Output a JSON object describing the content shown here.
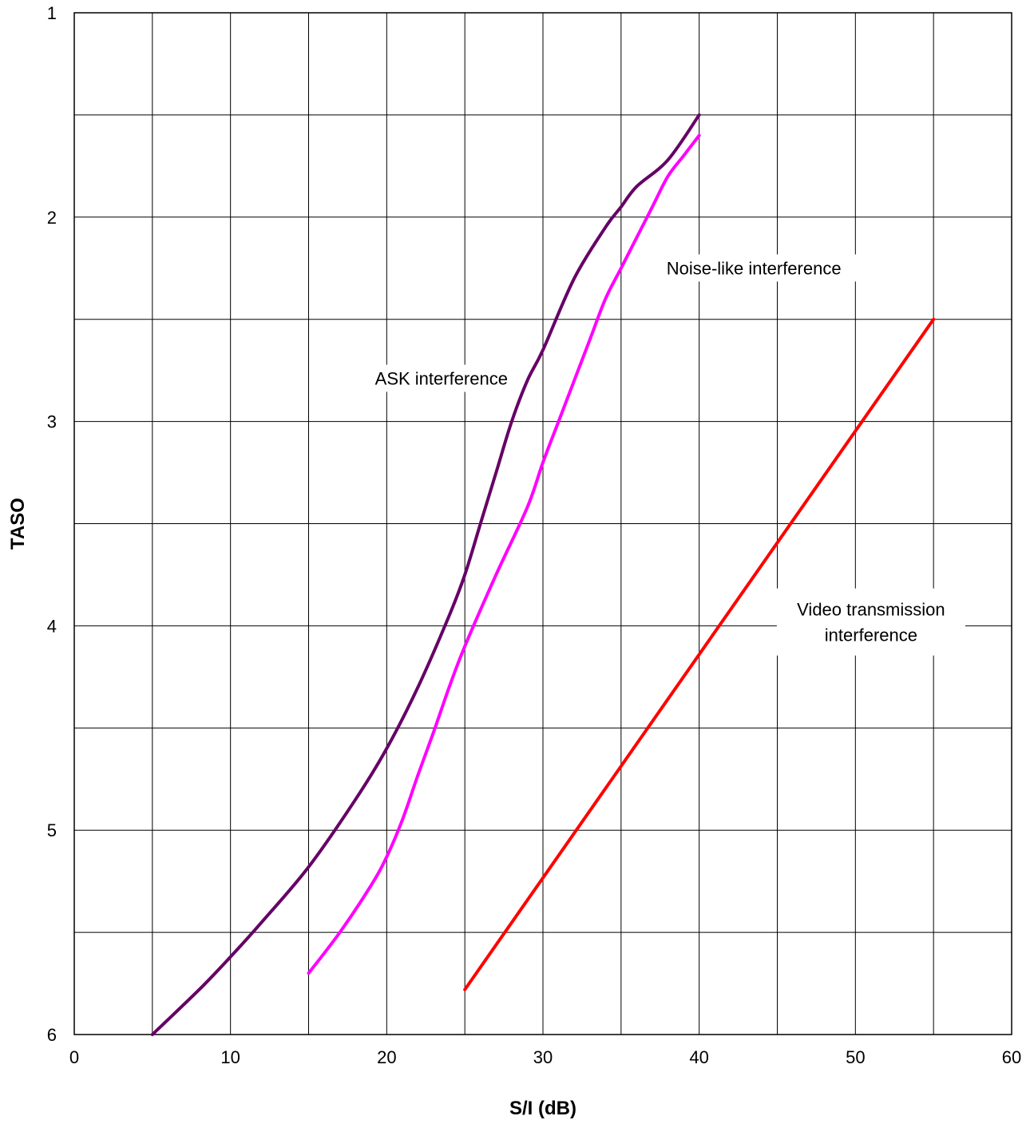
{
  "chart_data": {
    "type": "line",
    "title": "",
    "xlabel": "S/I (dB)",
    "ylabel": "TASO",
    "xlim": [
      0,
      60
    ],
    "ylim": [
      1,
      6
    ],
    "y_inverted": true,
    "x_ticks": [
      0,
      10,
      20,
      30,
      40,
      50,
      60
    ],
    "x_tick_labels": [
      "0",
      "10",
      "20",
      "30",
      "40",
      "50",
      "60"
    ],
    "y_ticks": [
      1,
      2,
      3,
      4,
      5,
      6
    ],
    "y_tick_labels": [
      "1",
      "2",
      "3",
      "4",
      "5",
      "6"
    ],
    "x_grid_step": 5,
    "y_grid_step": 0.5,
    "grid": true,
    "series": [
      {
        "name": "ASK interference",
        "color": "#660066",
        "x": [
          5,
          8,
          10,
          12,
          15,
          18,
          20,
          22,
          24,
          25,
          26,
          27,
          28,
          29,
          30,
          32,
          34,
          35,
          36,
          38,
          40
        ],
        "y": [
          6,
          5.78,
          5.62,
          5.45,
          5.18,
          4.85,
          4.6,
          4.3,
          3.95,
          3.75,
          3.5,
          3.25,
          3.0,
          2.8,
          2.65,
          2.3,
          2.05,
          1.95,
          1.85,
          1.72,
          1.5
        ]
      },
      {
        "name": "Noise-like interference",
        "color": "#ff00ff",
        "x": [
          15,
          17,
          19,
          20,
          21,
          22,
          23,
          24,
          25,
          27,
          29,
          30,
          31,
          32,
          33,
          34,
          35,
          36,
          37,
          38,
          39,
          40
        ],
        "y": [
          5.7,
          5.5,
          5.27,
          5.13,
          4.95,
          4.73,
          4.52,
          4.3,
          4.1,
          3.75,
          3.42,
          3.2,
          3.0,
          2.8,
          2.6,
          2.4,
          2.25,
          2.1,
          1.95,
          1.8,
          1.7,
          1.6
        ]
      },
      {
        "name": "Video transmission interference",
        "color": "#ff0000",
        "x": [
          25,
          55
        ],
        "y": [
          5.78,
          2.5
        ]
      }
    ],
    "annotations": [
      {
        "text": "ASK interference",
        "x": 23.5,
        "y": 2.82
      },
      {
        "text": "Noise-like interference",
        "x": 43.5,
        "y": 2.28
      },
      {
        "text": "Video transmission interference",
        "x": 51,
        "y": 3.95
      }
    ]
  }
}
